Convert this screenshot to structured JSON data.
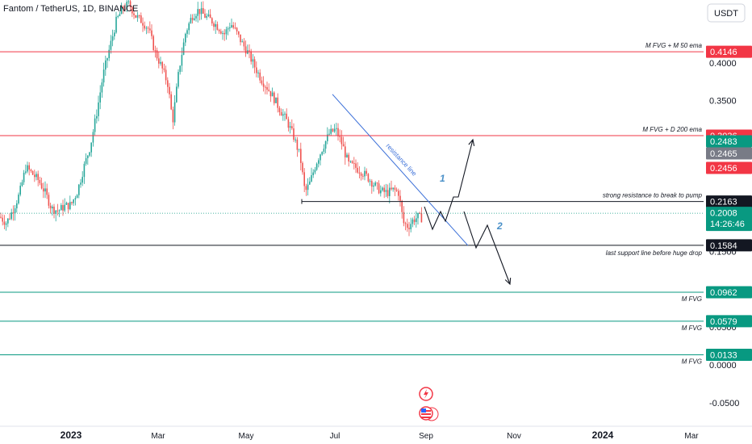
{
  "header": {
    "symbol_title": "Fantom / TetherUS, 1D, BINANCE",
    "currency_button": "USDT"
  },
  "colors": {
    "up": "#26a69a",
    "down": "#ef5350",
    "red_line": "#f23645",
    "green_line": "#089981",
    "black_line": "#131722",
    "blue_arrow": "#4a90c8",
    "resistance_line": "#3a6fd8"
  },
  "chart_data": {
    "type": "candlestick",
    "title": "Fantom / TetherUS, 1D, BINANCE",
    "y_axis": {
      "unit": "USDT",
      "ticks": [
        "0.4000",
        "0.3500",
        "0.1500",
        "0.0500",
        "0.0000",
        "-0.0500"
      ],
      "range": [
        -0.075,
        0.47
      ]
    },
    "x_axis": {
      "ticks": [
        "2023",
        "Mar",
        "May",
        "Jul",
        "Sep",
        "Nov",
        "2024",
        "Mar"
      ]
    },
    "price_series": [
      [
        0,
        0.196
      ],
      [
        8,
        0.188
      ],
      [
        16,
        0.205
      ],
      [
        24,
        0.226
      ],
      [
        32,
        0.262
      ],
      [
        40,
        0.253
      ],
      [
        48,
        0.244
      ],
      [
        56,
        0.228
      ],
      [
        64,
        0.207
      ],
      [
        72,
        0.204
      ],
      [
        80,
        0.21
      ],
      [
        88,
        0.212
      ],
      [
        96,
        0.23
      ],
      [
        104,
        0.262
      ],
      [
        112,
        0.29
      ],
      [
        120,
        0.335
      ],
      [
        128,
        0.385
      ],
      [
        136,
        0.42
      ],
      [
        144,
        0.455
      ],
      [
        152,
        0.472
      ],
      [
        160,
        0.478
      ],
      [
        168,
        0.462
      ],
      [
        176,
        0.455
      ],
      [
        184,
        0.445
      ],
      [
        192,
        0.415
      ],
      [
        200,
        0.395
      ],
      [
        208,
        0.372
      ],
      [
        214,
        0.322
      ],
      [
        222,
        0.392
      ],
      [
        230,
        0.44
      ],
      [
        238,
        0.462
      ],
      [
        246,
        0.47
      ],
      [
        254,
        0.462
      ],
      [
        262,
        0.456
      ],
      [
        270,
        0.448
      ],
      [
        278,
        0.438
      ],
      [
        286,
        0.452
      ],
      [
        292,
        0.442
      ],
      [
        300,
        0.426
      ],
      [
        308,
        0.412
      ],
      [
        316,
        0.394
      ],
      [
        324,
        0.378
      ],
      [
        332,
        0.366
      ],
      [
        340,
        0.352
      ],
      [
        348,
        0.336
      ],
      [
        356,
        0.322
      ],
      [
        364,
        0.302
      ],
      [
        372,
        0.276
      ],
      [
        378,
        0.228
      ],
      [
        384,
        0.241
      ],
      [
        392,
        0.268
      ],
      [
        400,
        0.288
      ],
      [
        408,
        0.306
      ],
      [
        416,
        0.312
      ],
      [
        424,
        0.292
      ],
      [
        432,
        0.266
      ],
      [
        440,
        0.262
      ],
      [
        448,
        0.256
      ],
      [
        456,
        0.248
      ],
      [
        464,
        0.238
      ],
      [
        472,
        0.23
      ],
      [
        480,
        0.228
      ],
      [
        488,
        0.232
      ],
      [
        494,
        0.228
      ],
      [
        500,
        0.188
      ],
      [
        506,
        0.183
      ],
      [
        512,
        0.192
      ],
      [
        518,
        0.196
      ],
      [
        524,
        0.194
      ]
    ],
    "levels": [
      {
        "value": 0.4146,
        "label": "M FVG + M 50 ema",
        "color": "#f23645"
      },
      {
        "value": 0.3036,
        "label": "M FVG + D 200 ema",
        "color": "#f23645"
      },
      {
        "value": 0.2163,
        "label": "strong resistance to break to pump",
        "color": "#131722"
      },
      {
        "value": 0.1584,
        "label": "last support line before huge drop",
        "color": "#131722"
      },
      {
        "value": 0.0962,
        "label": "M FVG",
        "color": "#089981"
      },
      {
        "value": 0.0579,
        "label": "M FVG",
        "color": "#089981"
      },
      {
        "value": 0.0133,
        "label": "M FVG",
        "color": "#089981"
      }
    ],
    "price_badges": [
      {
        "value": 0.4146,
        "text": "0.4146",
        "bg": "#f23645"
      },
      {
        "value": 0.3036,
        "text": "0.3036",
        "bg": "#f23645"
      },
      {
        "value": 0.2483,
        "text": "0.2483",
        "bg": "#089981"
      },
      {
        "value": 0.2465,
        "text": "0.2465",
        "bg": "#787b86"
      },
      {
        "value": 0.2456,
        "text": "0.2456",
        "bg": "#f23645"
      },
      {
        "value": 0.2163,
        "text": "0.2163",
        "bg": "#131722"
      },
      {
        "value": 0.2008,
        "text": "0.2008",
        "bg": "#089981",
        "subtext": "14:26:46"
      },
      {
        "value": 0.1584,
        "text": "0.1584",
        "bg": "#131722"
      },
      {
        "value": 0.0962,
        "text": "0.0962",
        "bg": "#089981"
      },
      {
        "value": 0.0579,
        "text": "0.0579",
        "bg": "#089981"
      },
      {
        "value": 0.0133,
        "text": "0.0133",
        "bg": "#089981"
      }
    ],
    "current_price": 0.2008,
    "annotations": {
      "resistance_line": "resistance line",
      "scenario_1": "1",
      "scenario_2": "2"
    }
  }
}
